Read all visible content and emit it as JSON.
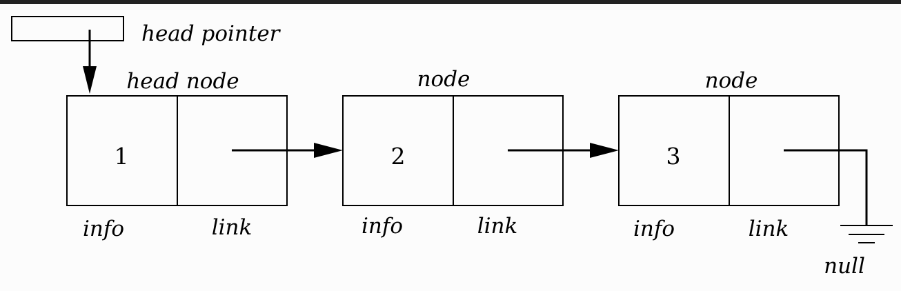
{
  "head_pointer_label": "head pointer",
  "nodes": [
    {
      "title": "head node",
      "value": "1",
      "info_label": "info",
      "link_label": "link"
    },
    {
      "title": "node",
      "value": "2",
      "info_label": "info",
      "link_label": "link"
    },
    {
      "title": "node",
      "value": "3",
      "info_label": "info",
      "link_label": "link"
    }
  ],
  "null_label": "null"
}
